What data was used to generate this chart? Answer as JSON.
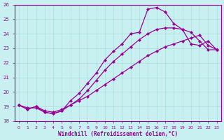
{
  "xlabel": "Windchill (Refroidissement éolien,°C)",
  "bg_color": "#c8f0f0",
  "line_color": "#990099",
  "grid_color": "#aadddd",
  "ylim": [
    18,
    26
  ],
  "xlim": [
    -0.5,
    23.5
  ],
  "yticks": [
    18,
    19,
    20,
    21,
    22,
    23,
    24,
    25,
    26
  ],
  "xticks": [
    0,
    1,
    2,
    3,
    4,
    5,
    6,
    7,
    8,
    9,
    10,
    11,
    12,
    13,
    14,
    15,
    16,
    17,
    18,
    19,
    20,
    21,
    22,
    23
  ],
  "series1_x": [
    0,
    1,
    2,
    3,
    4,
    5,
    6,
    7,
    8,
    9,
    10,
    11,
    12,
    13,
    14,
    15,
    16,
    17,
    18,
    19,
    20,
    21,
    22,
    23
  ],
  "series1_y": [
    19.1,
    18.8,
    19.0,
    18.6,
    18.5,
    18.7,
    19.4,
    19.9,
    20.6,
    21.3,
    22.2,
    22.8,
    23.3,
    24.0,
    24.1,
    25.7,
    25.8,
    25.5,
    24.7,
    24.3,
    23.3,
    23.2,
    23.5,
    22.9
  ],
  "series2_x": [
    0,
    1,
    2,
    3,
    4,
    5,
    6,
    7,
    8,
    9,
    10,
    11,
    12,
    13,
    14,
    15,
    16,
    17,
    18,
    19,
    20,
    21,
    22,
    23
  ],
  "series2_y": [
    19.1,
    18.8,
    19.0,
    18.7,
    18.6,
    18.8,
    19.1,
    19.5,
    20.1,
    20.8,
    21.5,
    22.1,
    22.6,
    23.1,
    23.6,
    24.0,
    24.3,
    24.4,
    24.4,
    24.3,
    24.1,
    23.5,
    22.9,
    22.9
  ],
  "series3_x": [
    0,
    1,
    2,
    3,
    4,
    5,
    6,
    7,
    8,
    9,
    10,
    11,
    12,
    13,
    14,
    15,
    16,
    17,
    18,
    19,
    20,
    21,
    22,
    23
  ],
  "series3_y": [
    19.1,
    18.9,
    18.9,
    18.6,
    18.5,
    18.7,
    19.1,
    19.4,
    19.7,
    20.1,
    20.5,
    20.9,
    21.3,
    21.7,
    22.1,
    22.5,
    22.8,
    23.1,
    23.3,
    23.5,
    23.7,
    23.9,
    23.2,
    22.9
  ]
}
